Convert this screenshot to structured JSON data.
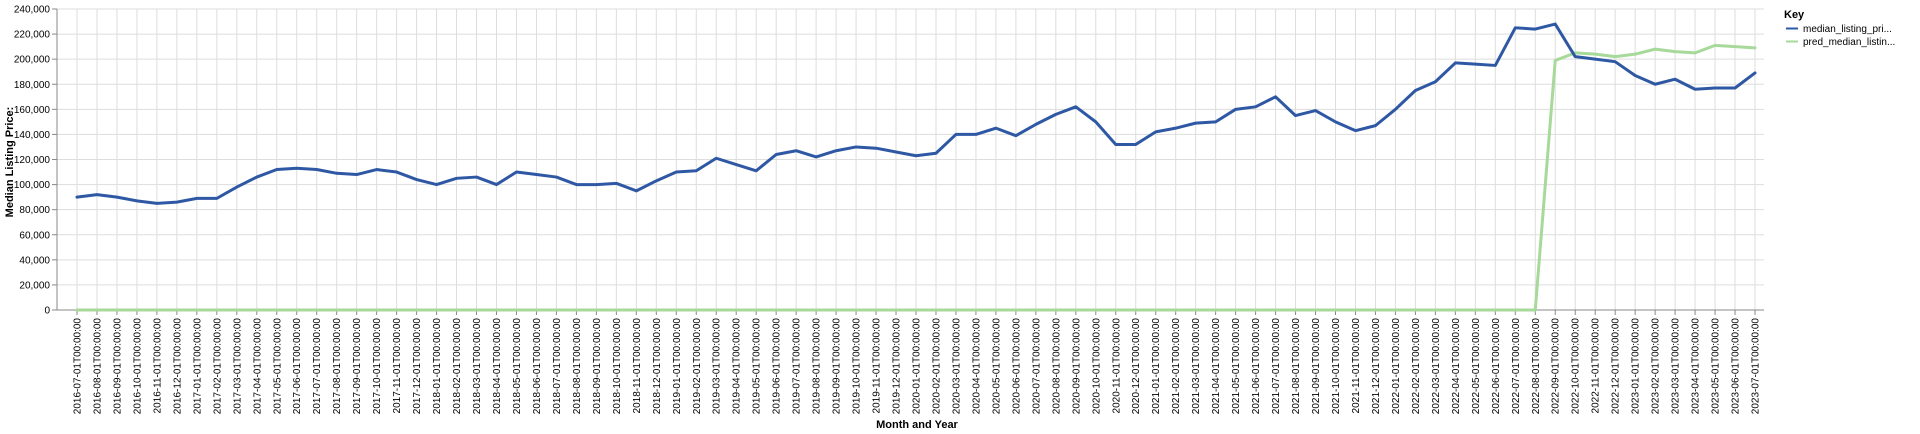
{
  "chart_data": {
    "type": "line",
    "title": "",
    "xlabel": "Month and Year",
    "ylabel": "Median Listing Price:",
    "ylim": [
      0,
      240000
    ],
    "y_ticks": [
      0,
      20000,
      40000,
      60000,
      80000,
      100000,
      120000,
      140000,
      160000,
      180000,
      200000,
      220000,
      240000
    ],
    "y_tick_labels": [
      "0",
      "20,000",
      "40,000",
      "60,000",
      "80,000",
      "100,000",
      "120,000",
      "140,000",
      "160,000",
      "180,000",
      "200,000",
      "220,000",
      "240,000"
    ],
    "grid": true,
    "legend": {
      "title": "Key",
      "position": "right"
    },
    "x": [
      "2016-07-01T00:00:00",
      "2016-08-01T00:00:00",
      "2016-09-01T00:00:00",
      "2016-10-01T00:00:00",
      "2016-11-01T00:00:00",
      "2016-12-01T00:00:00",
      "2017-01-01T00:00:00",
      "2017-02-01T00:00:00",
      "2017-03-01T00:00:00",
      "2017-04-01T00:00:00",
      "2017-05-01T00:00:00",
      "2017-06-01T00:00:00",
      "2017-07-01T00:00:00",
      "2017-08-01T00:00:00",
      "2017-09-01T00:00:00",
      "2017-10-01T00:00:00",
      "2017-11-01T00:00:00",
      "2017-12-01T00:00:00",
      "2018-01-01T00:00:00",
      "2018-02-01T00:00:00",
      "2018-03-01T00:00:00",
      "2018-04-01T00:00:00",
      "2018-05-01T00:00:00",
      "2018-06-01T00:00:00",
      "2018-07-01T00:00:00",
      "2018-08-01T00:00:00",
      "2018-09-01T00:00:00",
      "2018-10-01T00:00:00",
      "2018-11-01T00:00:00",
      "2018-12-01T00:00:00",
      "2019-01-01T00:00:00",
      "2019-02-01T00:00:00",
      "2019-03-01T00:00:00",
      "2019-04-01T00:00:00",
      "2019-05-01T00:00:00",
      "2019-06-01T00:00:00",
      "2019-07-01T00:00:00",
      "2019-08-01T00:00:00",
      "2019-09-01T00:00:00",
      "2019-10-01T00:00:00",
      "2019-11-01T00:00:00",
      "2019-12-01T00:00:00",
      "2020-01-01T00:00:00",
      "2020-02-01T00:00:00",
      "2020-03-01T00:00:00",
      "2020-04-01T00:00:00",
      "2020-05-01T00:00:00",
      "2020-06-01T00:00:00",
      "2020-07-01T00:00:00",
      "2020-08-01T00:00:00",
      "2020-09-01T00:00:00",
      "2020-10-01T00:00:00",
      "2020-11-01T00:00:00",
      "2020-12-01T00:00:00",
      "2021-01-01T00:00:00",
      "2021-02-01T00:00:00",
      "2021-03-01T00:00:00",
      "2021-04-01T00:00:00",
      "2021-05-01T00:00:00",
      "2021-06-01T00:00:00",
      "2021-07-01T00:00:00",
      "2021-08-01T00:00:00",
      "2021-09-01T00:00:00",
      "2021-10-01T00:00:00",
      "2021-11-01T00:00:00",
      "2021-12-01T00:00:00",
      "2022-01-01T00:00:00",
      "2022-02-01T00:00:00",
      "2022-03-01T00:00:00",
      "2022-04-01T00:00:00",
      "2022-05-01T00:00:00",
      "2022-06-01T00:00:00",
      "2022-07-01T00:00:00",
      "2022-08-01T00:00:00",
      "2022-09-01T00:00:00",
      "2022-10-01T00:00:00",
      "2022-11-01T00:00:00",
      "2022-12-01T00:00:00",
      "2023-01-01T00:00:00",
      "2023-02-01T00:00:00",
      "2023-03-01T00:00:00",
      "2023-04-01T00:00:00",
      "2023-05-01T00:00:00",
      "2023-06-01T00:00:00",
      "2023-07-01T00:00:00"
    ],
    "series": [
      {
        "name": "median_listing_pri...",
        "color": "#2f58a4",
        "values": [
          90000,
          92000,
          90000,
          87000,
          85000,
          86000,
          89000,
          89000,
          98000,
          106000,
          112000,
          113000,
          112000,
          109000,
          108000,
          112000,
          110000,
          104000,
          100000,
          105000,
          106000,
          100000,
          110000,
          108000,
          106000,
          100000,
          100000,
          101000,
          95000,
          103000,
          110000,
          111000,
          121000,
          116000,
          111000,
          124000,
          127000,
          122000,
          127000,
          130000,
          129000,
          126000,
          123000,
          125000,
          140000,
          140000,
          145000,
          139000,
          148000,
          156000,
          162000,
          150000,
          132000,
          132000,
          142000,
          145000,
          149000,
          150000,
          160000,
          162000,
          170000,
          155000,
          159000,
          150000,
          143000,
          147000,
          160000,
          175000,
          182000,
          197000,
          196000,
          195000,
          225000,
          224000,
          228000,
          202000,
          200000,
          198000,
          187000,
          180000,
          184000,
          176000,
          177000,
          177000,
          189000
        ]
      },
      {
        "name": "pred_median_listin...",
        "color": "#a6d99a",
        "values": [
          0,
          0,
          0,
          0,
          0,
          0,
          0,
          0,
          0,
          0,
          0,
          0,
          0,
          0,
          0,
          0,
          0,
          0,
          0,
          0,
          0,
          0,
          0,
          0,
          0,
          0,
          0,
          0,
          0,
          0,
          0,
          0,
          0,
          0,
          0,
          0,
          0,
          0,
          0,
          0,
          0,
          0,
          0,
          0,
          0,
          0,
          0,
          0,
          0,
          0,
          0,
          0,
          0,
          0,
          0,
          0,
          0,
          0,
          0,
          0,
          0,
          0,
          0,
          0,
          0,
          0,
          0,
          0,
          0,
          0,
          0,
          0,
          0,
          0,
          199000,
          205000,
          204000,
          202000,
          204000,
          208000,
          206000,
          205000,
          211000,
          210000,
          209000
        ]
      }
    ]
  }
}
